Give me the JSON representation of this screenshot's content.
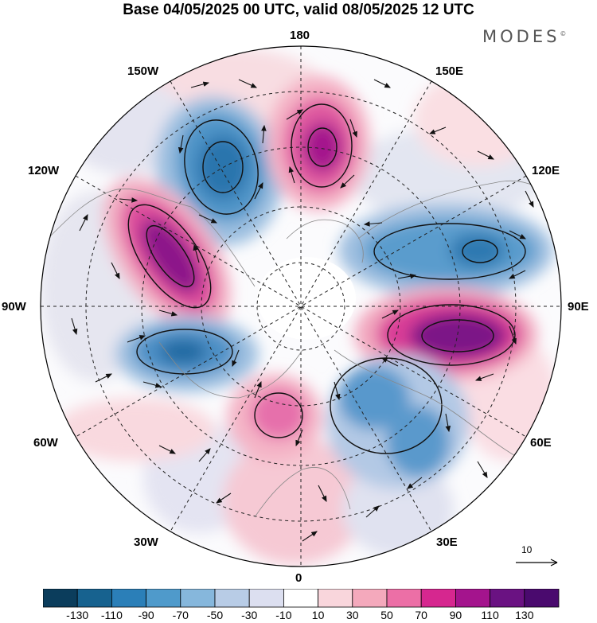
{
  "header": {
    "title": "Base 04/05/2025 00 UTC, valid 08/05/2025 12 UTC",
    "brand": "MODES",
    "brand_mark": "©"
  },
  "longitude_labels": {
    "top": "180",
    "bottom": "0",
    "left": "90W",
    "right": "90E",
    "upper_left_1": "150W",
    "upper_left_2": "120W",
    "upper_right_1": "150E",
    "upper_right_2": "120E",
    "lower_left_1": "60W",
    "lower_left_2": "30W",
    "lower_right_1": "60E",
    "lower_right_2": "30E"
  },
  "vector_reference": {
    "label": "10"
  },
  "colorbar": {
    "tick_labels": [
      "-130",
      "-110",
      "-90",
      "-70",
      "-50",
      "-30",
      "-10",
      "10",
      "30",
      "50",
      "70",
      "90",
      "110",
      "130"
    ],
    "colors": [
      "#0b3d5c",
      "#17628f",
      "#2b7fb8",
      "#4f9acb",
      "#86b7dc",
      "#b8cce6",
      "#dcdff0",
      "#ffffff",
      "#f9d6dc",
      "#f4a9bc",
      "#ec6fa6",
      "#d6278f",
      "#a4148d",
      "#6a1282",
      "#4a0a6e"
    ]
  },
  "icons": {
    "reference_arrow": "right-arrow-icon"
  }
}
